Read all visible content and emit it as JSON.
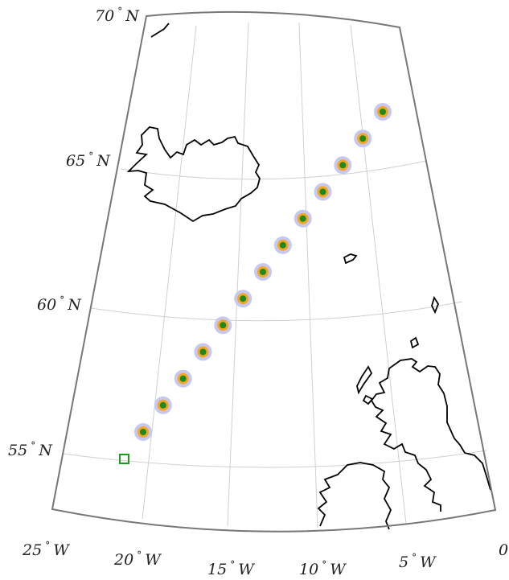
{
  "map": {
    "projection": "conic",
    "lat_labels": [
      "70",
      "65",
      "60",
      "55"
    ],
    "lat_hemisphere": "N",
    "lon_labels": [
      "25",
      "20",
      "15",
      "10",
      "5",
      "0"
    ],
    "lon_hemisphere": "W",
    "degree_symbol": "°",
    "colors": {
      "frame": "#777777",
      "grid": "#cccccc",
      "coastline": "#000000",
      "halo": "#c6c8f0",
      "ring": "#f5a623",
      "dot": "#1e8a1e",
      "square_marker": "#1e9a1e"
    },
    "track_point_count": 13,
    "square_marker_count": 1
  }
}
